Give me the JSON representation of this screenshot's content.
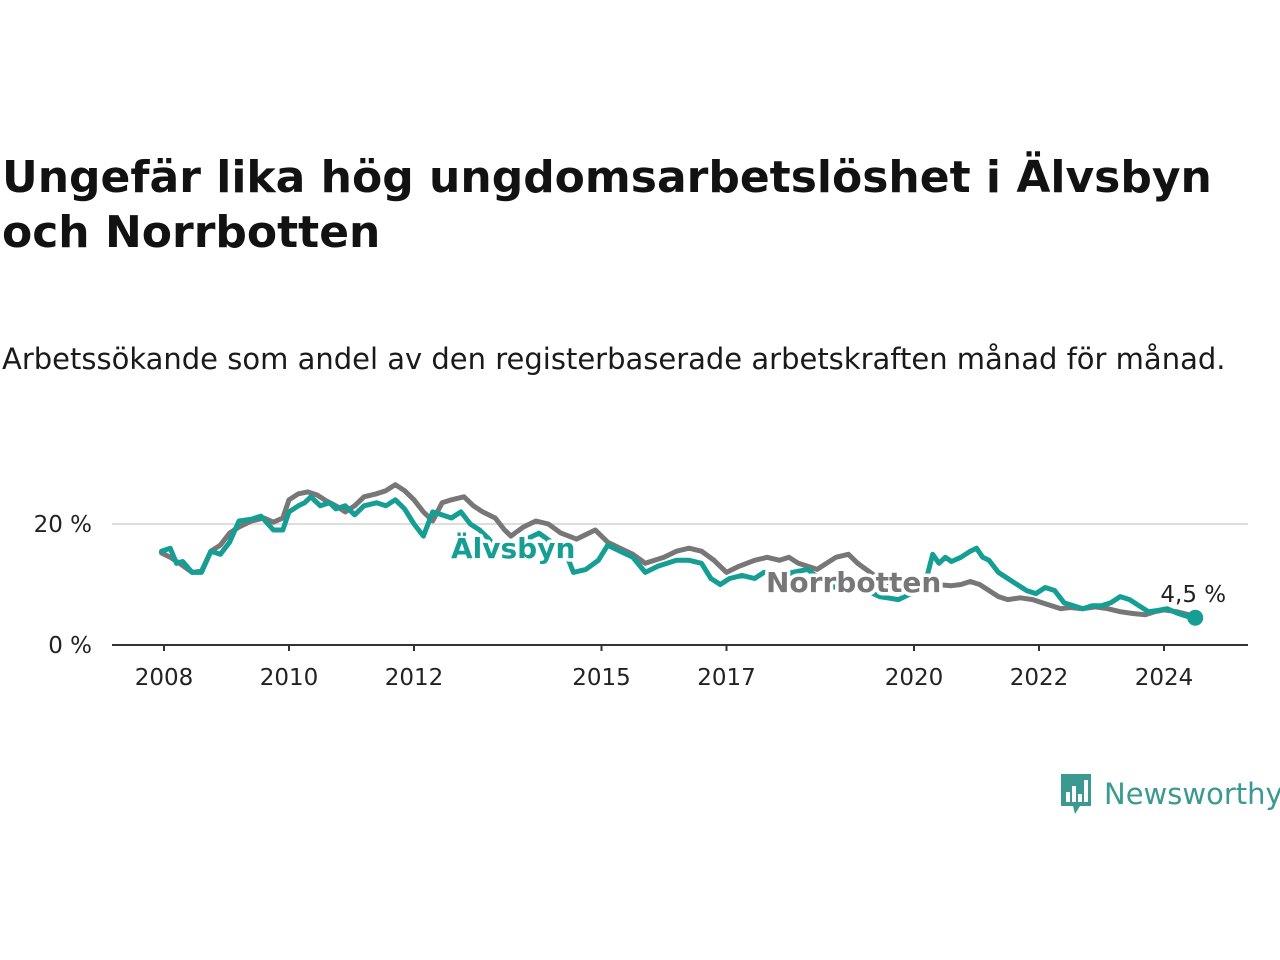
{
  "title": "Ungefär lika hög ungdomsarbetslöshet i Älvsbyn och Norrbotten",
  "subtitle": "Arbetssökande som andel av den registerbaserade arbetskraften månad för månad.",
  "logo": {
    "text": "Newsworthy",
    "icon": "bar-chart-bubble-icon"
  },
  "colors": {
    "alvsbyn": "#159e94",
    "norrbotten": "#777777",
    "grid": "#dddddd",
    "axis": "#333333"
  },
  "chart_data": {
    "type": "line",
    "x_unit": "year",
    "ylim": [
      0,
      30
    ],
    "yticks": [
      0,
      20
    ],
    "ytick_labels": [
      "0 %",
      "20 %"
    ],
    "xticks": [
      2008,
      2010,
      2012,
      2015,
      2017,
      2020,
      2022,
      2024
    ],
    "xtick_labels": [
      "2008",
      "2010",
      "2012",
      "2015",
      "2017",
      "2020",
      "2022",
      "2024"
    ],
    "grid": "horizontal",
    "end_label": "4,5 %",
    "series": [
      {
        "name": "Norrbotten",
        "color": "#777777",
        "points": [
          [
            2007.96,
            15.2
          ],
          [
            2008.1,
            14.5
          ],
          [
            2008.25,
            13.5
          ],
          [
            2008.45,
            12.0
          ],
          [
            2008.6,
            12.2
          ],
          [
            2008.75,
            15.5
          ],
          [
            2008.9,
            16.5
          ],
          [
            2009.05,
            18.5
          ],
          [
            2009.2,
            19.5
          ],
          [
            2009.4,
            20.5
          ],
          [
            2009.6,
            21.0
          ],
          [
            2009.75,
            20.3
          ],
          [
            2009.9,
            21.0
          ],
          [
            2010.0,
            24.0
          ],
          [
            2010.15,
            25.0
          ],
          [
            2010.3,
            25.3
          ],
          [
            2010.45,
            24.8
          ],
          [
            2010.6,
            23.8
          ],
          [
            2010.75,
            23.0
          ],
          [
            2010.9,
            22.0
          ],
          [
            2011.05,
            23.0
          ],
          [
            2011.2,
            24.5
          ],
          [
            2011.4,
            25.0
          ],
          [
            2011.55,
            25.5
          ],
          [
            2011.7,
            26.5
          ],
          [
            2011.85,
            25.5
          ],
          [
            2012.0,
            24.0
          ],
          [
            2012.15,
            22.0
          ],
          [
            2012.3,
            20.5
          ],
          [
            2012.45,
            23.5
          ],
          [
            2012.6,
            24.0
          ],
          [
            2012.8,
            24.5
          ],
          [
            2012.95,
            23.0
          ],
          [
            2013.1,
            22.0
          ],
          [
            2013.3,
            21.0
          ],
          [
            2013.45,
            19.0
          ],
          [
            2013.55,
            18.0
          ],
          [
            2013.75,
            19.5
          ],
          [
            2013.95,
            20.5
          ],
          [
            2014.15,
            20.0
          ],
          [
            2014.35,
            18.5
          ],
          [
            2014.6,
            17.5
          ],
          [
            2014.9,
            19.0
          ],
          [
            2015.1,
            17.0
          ],
          [
            2015.3,
            16.0
          ],
          [
            2015.5,
            15.0
          ],
          [
            2015.7,
            13.5
          ],
          [
            2016.0,
            14.5
          ],
          [
            2016.2,
            15.5
          ],
          [
            2016.4,
            16.0
          ],
          [
            2016.6,
            15.5
          ],
          [
            2016.8,
            14.0
          ],
          [
            2017.0,
            12.0
          ],
          [
            2017.2,
            13.0
          ],
          [
            2017.45,
            14.0
          ],
          [
            2017.65,
            14.5
          ],
          [
            2017.85,
            14.0
          ],
          [
            2018.0,
            14.5
          ],
          [
            2018.15,
            13.5
          ],
          [
            2018.3,
            13.0
          ],
          [
            2018.45,
            12.5
          ],
          [
            2018.6,
            13.5
          ],
          [
            2018.75,
            14.5
          ],
          [
            2018.95,
            15.0
          ],
          [
            2019.1,
            13.5
          ],
          [
            2019.3,
            12.0
          ],
          [
            2019.5,
            10.5
          ],
          [
            2019.7,
            9.0
          ],
          [
            2019.9,
            8.7
          ],
          [
            2020.1,
            9.0
          ],
          [
            2020.35,
            10.0
          ],
          [
            2020.6,
            9.8
          ],
          [
            2020.75,
            10.0
          ],
          [
            2020.9,
            10.5
          ],
          [
            2021.05,
            10.0
          ],
          [
            2021.2,
            9.0
          ],
          [
            2021.35,
            8.0
          ],
          [
            2021.5,
            7.5
          ],
          [
            2021.7,
            7.8
          ],
          [
            2021.9,
            7.5
          ],
          [
            2022.05,
            7.0
          ],
          [
            2022.2,
            6.5
          ],
          [
            2022.35,
            6.0
          ],
          [
            2022.5,
            6.2
          ],
          [
            2022.7,
            6.0
          ],
          [
            2022.9,
            6.3
          ],
          [
            2023.1,
            6.0
          ],
          [
            2023.3,
            5.5
          ],
          [
            2023.5,
            5.2
          ],
          [
            2023.7,
            5.0
          ],
          [
            2023.85,
            5.5
          ],
          [
            2024.0,
            5.8
          ],
          [
            2024.2,
            5.5
          ],
          [
            2024.4,
            5.0
          ],
          [
            2024.55,
            4.7
          ]
        ]
      },
      {
        "name": "Älvsbyn",
        "color": "#159e94",
        "points": [
          [
            2007.96,
            15.5
          ],
          [
            2008.1,
            16.0
          ],
          [
            2008.2,
            13.5
          ],
          [
            2008.3,
            13.8
          ],
          [
            2008.45,
            12.0
          ],
          [
            2008.6,
            12.0
          ],
          [
            2008.75,
            15.5
          ],
          [
            2008.9,
            15.0
          ],
          [
            2009.05,
            17.0
          ],
          [
            2009.2,
            20.5
          ],
          [
            2009.4,
            20.8
          ],
          [
            2009.55,
            21.3
          ],
          [
            2009.75,
            19.0
          ],
          [
            2009.9,
            19.0
          ],
          [
            2010.0,
            22.0
          ],
          [
            2010.15,
            23.0
          ],
          [
            2010.25,
            23.5
          ],
          [
            2010.35,
            24.5
          ],
          [
            2010.5,
            23.0
          ],
          [
            2010.65,
            23.5
          ],
          [
            2010.75,
            22.5
          ],
          [
            2010.9,
            23.0
          ],
          [
            2011.05,
            21.5
          ],
          [
            2011.2,
            23.0
          ],
          [
            2011.4,
            23.5
          ],
          [
            2011.55,
            23.0
          ],
          [
            2011.7,
            24.0
          ],
          [
            2011.85,
            22.5
          ],
          [
            2012.0,
            20.0
          ],
          [
            2012.15,
            18.0
          ],
          [
            2012.3,
            22.0
          ],
          [
            2012.45,
            21.5
          ],
          [
            2012.6,
            21.0
          ],
          [
            2012.75,
            22.0
          ],
          [
            2012.9,
            20.0
          ],
          [
            2013.05,
            19.0
          ],
          [
            2013.2,
            17.5
          ],
          [
            2013.35,
            15.5
          ],
          [
            2013.5,
            15.0
          ],
          [
            2013.65,
            16.5
          ],
          [
            2013.8,
            17.5
          ],
          [
            2014.0,
            18.5
          ],
          [
            2014.2,
            17.0
          ],
          [
            2014.4,
            16.0
          ],
          [
            2014.55,
            12.0
          ],
          [
            2014.75,
            12.5
          ],
          [
            2014.95,
            14.0
          ],
          [
            2015.1,
            16.5
          ],
          [
            2015.3,
            15.5
          ],
          [
            2015.5,
            14.5
          ],
          [
            2015.7,
            12.0
          ],
          [
            2015.9,
            13.0
          ],
          [
            2016.05,
            13.5
          ],
          [
            2016.2,
            14.0
          ],
          [
            2016.4,
            14.0
          ],
          [
            2016.6,
            13.5
          ],
          [
            2016.75,
            11.0
          ],
          [
            2016.9,
            10.0
          ],
          [
            2017.05,
            11.0
          ],
          [
            2017.25,
            11.5
          ],
          [
            2017.45,
            11.0
          ],
          [
            2017.6,
            12.0
          ],
          [
            2017.75,
            12.0
          ],
          [
            2017.9,
            11.0
          ],
          [
            2018.05,
            12.0
          ],
          [
            2018.3,
            12.5
          ],
          [
            2018.6,
            10.0
          ],
          [
            2018.9,
            9.0
          ],
          [
            2019.15,
            9.5
          ],
          [
            2019.45,
            8.0
          ],
          [
            2019.75,
            7.5
          ],
          [
            2019.95,
            8.5
          ],
          [
            2020.15,
            9.0
          ],
          [
            2020.3,
            15.0
          ],
          [
            2020.4,
            13.5
          ],
          [
            2020.5,
            14.5
          ],
          [
            2020.6,
            13.8
          ],
          [
            2020.75,
            14.5
          ],
          [
            2020.9,
            15.5
          ],
          [
            2021.0,
            16.0
          ],
          [
            2021.1,
            14.5
          ],
          [
            2021.2,
            14.0
          ],
          [
            2021.35,
            12.0
          ],
          [
            2021.5,
            11.0
          ],
          [
            2021.65,
            10.0
          ],
          [
            2021.8,
            9.0
          ],
          [
            2021.95,
            8.5
          ],
          [
            2022.1,
            9.5
          ],
          [
            2022.25,
            9.0
          ],
          [
            2022.4,
            7.0
          ],
          [
            2022.55,
            6.5
          ],
          [
            2022.7,
            6.0
          ],
          [
            2022.85,
            6.5
          ],
          [
            2023.0,
            6.5
          ],
          [
            2023.15,
            7.0
          ],
          [
            2023.3,
            8.0
          ],
          [
            2023.45,
            7.5
          ],
          [
            2023.6,
            6.5
          ],
          [
            2023.75,
            5.5
          ],
          [
            2023.9,
            5.7
          ],
          [
            2024.05,
            6.0
          ],
          [
            2024.2,
            5.3
          ],
          [
            2024.35,
            4.8
          ],
          [
            2024.5,
            4.5
          ]
        ]
      }
    ]
  }
}
